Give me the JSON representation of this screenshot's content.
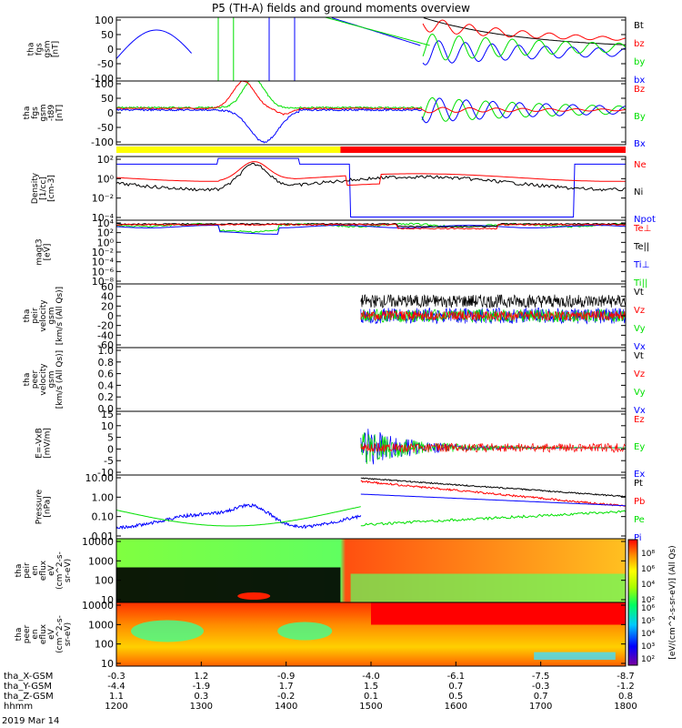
{
  "title": "P5 (TH-A) fields and ground moments overview",
  "date_label": "2019 Mar 14",
  "colors": {
    "black": "#000000",
    "red": "#ff0000",
    "green": "#00e000",
    "blue": "#0000ff",
    "yellow": "#ffff00"
  },
  "chart_data": [
    {
      "id": "fgs",
      "type": "line",
      "ylabel": [
        "tha",
        "fgs",
        "gsm",
        "[nT]"
      ],
      "yticks": [
        "100",
        "50",
        "0",
        "-50",
        "-100"
      ],
      "ylim": [
        -100,
        100
      ],
      "legend": [
        {
          "name": "Bt",
          "color": "#000000"
        },
        {
          "name": "bz",
          "color": "#ff0000"
        },
        {
          "name": "by",
          "color": "#00e000"
        },
        {
          "name": "bx",
          "color": "#0000ff"
        }
      ]
    },
    {
      "id": "fgs_dc",
      "type": "line",
      "ylabel": [
        "tha",
        "fgs",
        "gsm",
        "-t89",
        "[nT]"
      ],
      "yticks": [
        "100",
        "50",
        "0",
        "-50",
        "-100"
      ],
      "ylim": [
        -120,
        100
      ],
      "legend": [
        {
          "name": "Bz",
          "color": "#ff0000"
        },
        {
          "name": "By",
          "color": "#00e000"
        },
        {
          "name": "Bx",
          "color": "#0000ff"
        }
      ]
    },
    {
      "id": "density",
      "type": "line",
      "ylabel": [
        "Density",
        "[1/cc]",
        "[cm-3]"
      ],
      "yticks": [
        "10²",
        "10⁰",
        "10⁻²",
        "10⁻⁴"
      ],
      "ylim": [
        3e-05,
        300
      ],
      "log": true,
      "legend": [
        {
          "name": "Ne",
          "color": "#ff0000"
        },
        {
          "name": "Ni",
          "color": "#000000"
        },
        {
          "name": "Npot",
          "color": "#0000ff"
        }
      ]
    },
    {
      "id": "temperature",
      "type": "line",
      "ylabel": [
        "magt3",
        "[eV]"
      ],
      "yticks": [
        "10⁴",
        "10²",
        "10⁰",
        "10⁻²",
        "10⁻⁴",
        "10⁻⁶",
        "10⁻⁸"
      ],
      "log": true,
      "legend": [
        {
          "name": "Te⊥",
          "color": "#ff0000"
        },
        {
          "name": "Te||",
          "color": "#000000"
        },
        {
          "name": "Ti⊥",
          "color": "#0000ff"
        },
        {
          "name": "Ti||",
          "color": "#00e000"
        }
      ]
    },
    {
      "id": "peir_velocity",
      "type": "line",
      "ylabel": [
        "tha",
        "peir",
        "velocity",
        "gsm",
        "[km/s (All Qs)]"
      ],
      "yticks": [
        "60",
        "40",
        "20",
        "0",
        "-20",
        "-40",
        "-60"
      ],
      "ylim": [
        -60,
        60
      ],
      "legend": [
        {
          "name": "Vt",
          "color": "#000000"
        },
        {
          "name": "Vz",
          "color": "#ff0000"
        },
        {
          "name": "Vy",
          "color": "#00e000"
        },
        {
          "name": "Vx",
          "color": "#0000ff"
        }
      ]
    },
    {
      "id": "peer_velocity",
      "type": "line",
      "ylabel": [
        "tha",
        "peer",
        "velocity",
        "gsm",
        "[km/s (All Qs)]"
      ],
      "yticks": [
        "1.0",
        "0.8",
        "0.6",
        "0.4",
        "0.2",
        "0.0"
      ],
      "ylim": [
        0,
        1
      ],
      "legend": [
        {
          "name": "Vt",
          "color": "#000000"
        },
        {
          "name": "Vz",
          "color": "#ff0000"
        },
        {
          "name": "Vy",
          "color": "#00e000"
        },
        {
          "name": "Vx",
          "color": "#0000ff"
        }
      ]
    },
    {
      "id": "efield",
      "type": "line",
      "ylabel": [
        "E=-VxB",
        "[mV/m]"
      ],
      "yticks": [
        "15",
        "10",
        "5",
        "0",
        "-5",
        "-10"
      ],
      "ylim": [
        -12,
        16
      ],
      "legend": [
        {
          "name": "Ez",
          "color": "#ff0000"
        },
        {
          "name": "Ey",
          "color": "#00e000"
        },
        {
          "name": "Ex",
          "color": "#0000ff"
        }
      ]
    },
    {
      "id": "pressure",
      "type": "line",
      "ylabel": [
        "Pressure",
        "[nPa]"
      ],
      "yticks": [
        "10.00",
        "1.00",
        "0.10",
        "0.01"
      ],
      "log": true,
      "legend": [
        {
          "name": "Pt",
          "color": "#000000"
        },
        {
          "name": "Pb",
          "color": "#ff0000"
        },
        {
          "name": "Pe",
          "color": "#00e000"
        },
        {
          "name": "Pi",
          "color": "#0000ff"
        }
      ]
    },
    {
      "id": "peir_spec",
      "type": "heatmap",
      "ylabel": [
        "tha",
        "peir",
        "en",
        "eflux",
        "eV",
        "(cm^2-s-",
        "sr-eV)"
      ],
      "yticks": [
        "10000",
        "1000",
        "100",
        "10"
      ]
    },
    {
      "id": "peer_spec",
      "type": "heatmap",
      "ylabel": [
        "tha",
        "peer",
        "en",
        "eflux",
        "eV",
        "(cm^2-s-",
        "sr-eV)"
      ],
      "yticks": [
        "10000",
        "1000",
        "100",
        "10"
      ]
    }
  ],
  "colorbar": {
    "label": "[eV/(cm^2-s-sr-eV)] (All Qs)",
    "upper_ticks": [
      "10⁸",
      "10⁶",
      "10⁴",
      "10²"
    ],
    "lower_ticks": [
      "10⁶",
      "10⁵",
      "10⁴",
      "10³",
      "10²"
    ]
  },
  "mode_bar": [
    {
      "color": "#ffff00",
      "from": 0,
      "to": 0.44
    },
    {
      "color": "#ff0000",
      "from": 0.44,
      "to": 1.0
    }
  ],
  "x_axis": {
    "rows": [
      {
        "label": "tha_X-GSM",
        "values": [
          "-0.3",
          "1.2",
          "-0.9",
          "-4.0",
          "-6.1",
          "-7.5",
          "-8.7"
        ]
      },
      {
        "label": "tha_Y-GSM",
        "values": [
          "-4.4",
          "-1.9",
          "1.7",
          "1.5",
          "0.7",
          "-0.3",
          "-1.2"
        ]
      },
      {
        "label": "tha_Z-GSM",
        "values": [
          "1.1",
          "0.3",
          "-0.2",
          "0.1",
          "0.5",
          "0.7",
          "0.8"
        ]
      },
      {
        "label": "hhmm",
        "values": [
          "1200",
          "1300",
          "1400",
          "1500",
          "1600",
          "1700",
          "1800"
        ]
      }
    ]
  }
}
